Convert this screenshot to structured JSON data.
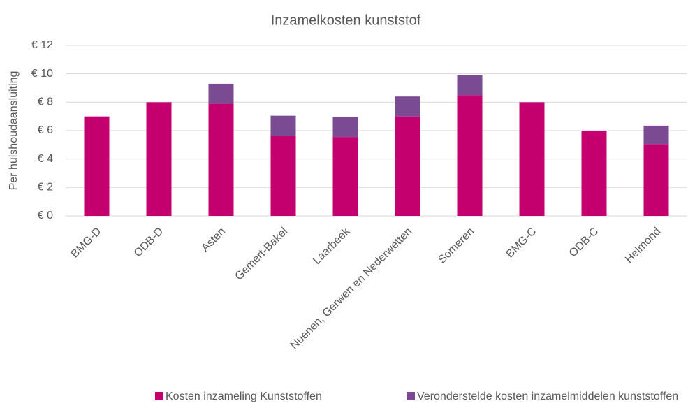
{
  "chart_data": {
    "type": "bar",
    "stacked": true,
    "title": "Inzamelkosten kunststof",
    "ylabel": "Per huishoudaansluiting",
    "categories": [
      "BMG-D",
      "ODB-D",
      "Asten",
      "Gemert-Bakel",
      "Laarbeek",
      "Nuenen, Gerwen en Nederwetten",
      "Someren",
      "BMG-C",
      "ODB-C",
      "Helmond"
    ],
    "series": [
      {
        "name": "Kosten inzameling Kunststoffen",
        "color": "#c4006e",
        "values": [
          7,
          8,
          7.9,
          5.65,
          5.55,
          7,
          8.5,
          8,
          6,
          5.05
        ]
      },
      {
        "name": "Veronderstelde kosten inzamelmiddelen kunststoffen",
        "color": "#7a4a93",
        "values": [
          null,
          null,
          1.4,
          1.4,
          1.4,
          1.4,
          1.4,
          null,
          null,
          1.3
        ]
      }
    ],
    "ylim": [
      0,
      12
    ],
    "yticks": [
      {
        "value": 0,
        "label": "€ 0"
      },
      {
        "value": 2,
        "label": "€ 2"
      },
      {
        "value": 4,
        "label": "€ 4"
      },
      {
        "value": 6,
        "label": "€ 6"
      },
      {
        "value": 8,
        "label": "€ 8"
      },
      {
        "value": 10,
        "label": "€ 10"
      },
      {
        "value": 12,
        "label": "€ 12"
      }
    ],
    "grid": true,
    "legend": "bottom"
  }
}
